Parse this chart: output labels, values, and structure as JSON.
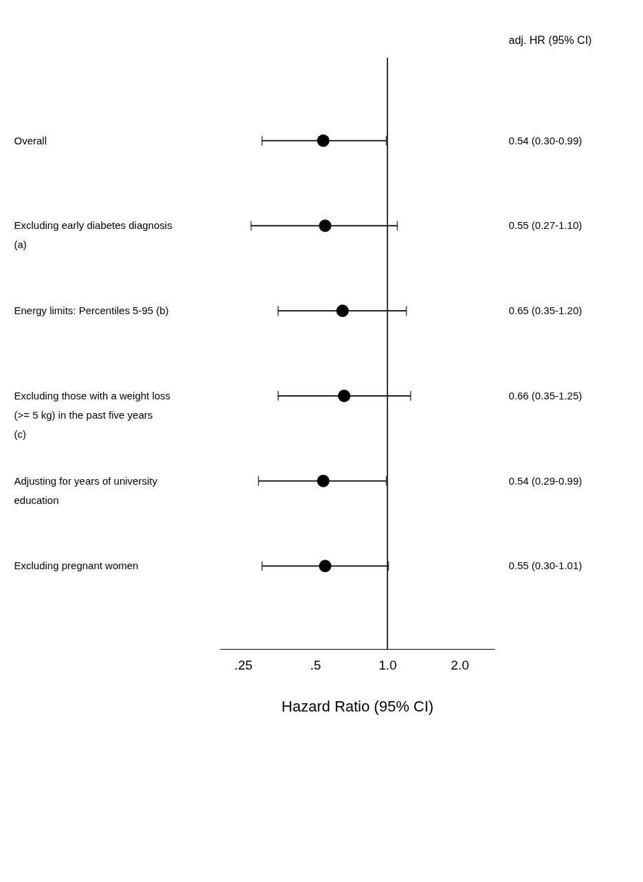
{
  "chart_data": {
    "type": "scatter",
    "xlabel": "Hazard Ratio (95% CI)",
    "y2label": "adj. HR (95% CI)",
    "categories": [
      "Overall",
      "Excluding early diabetes diagnosis (a)",
      "Energy limits: Percentiles 5-95 (b)",
      "Excluding those with a weight loss (>= 5 kg) in the past five years (c)",
      "Adjusting for years of university education",
      "Excluding pregnant women"
    ],
    "values": [
      0.54,
      0.55,
      0.65,
      0.66,
      0.54,
      0.55
    ],
    "errors": [
      [
        0.3,
        0.99
      ],
      [
        0.27,
        1.1
      ],
      [
        0.35,
        1.2
      ],
      [
        0.35,
        1.25
      ],
      [
        0.29,
        0.99
      ],
      [
        0.3,
        1.01
      ]
    ],
    "value_labels": [
      "0.54 (0.30-0.99)",
      "0.55 (0.27-1.10)",
      "0.65 (0.35-1.20)",
      "0.66 (0.35-1.25)",
      "0.54 (0.29-0.99)",
      "0.55 (0.30-1.01)"
    ],
    "color": "#000000",
    "marker": "circle",
    "log": "x",
    "orientation": "horizontal",
    "xlim": [
      0.2,
      2.8
    ],
    "xticks": [
      {
        "value": 0.25,
        "label": ".25"
      },
      {
        "value": 0.5,
        "label": ".5"
      },
      {
        "value": 1,
        "label": "1.0"
      },
      {
        "value": 2,
        "label": "2.0"
      }
    ],
    "ref_lines": [
      {
        "axis": "x",
        "value": 1
      }
    ],
    "grid": false
  }
}
